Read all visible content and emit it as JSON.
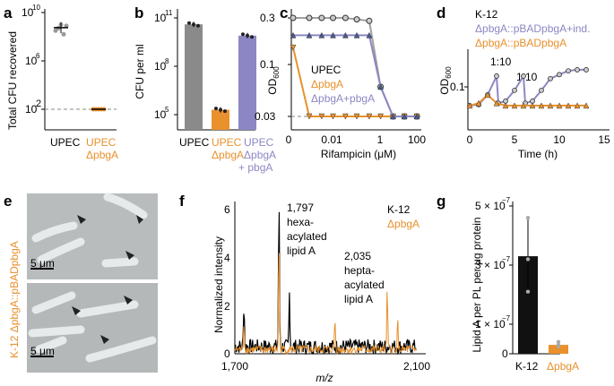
{
  "panels": {
    "a": {
      "label": "a",
      "ylabel": "Total CFU recovered",
      "yticks": [
        "10",
        "10",
        "10"
      ],
      "yexp": [
        "2",
        "6",
        "10"
      ],
      "xcat": [
        "UPEC",
        "UPEC",
        "ΔpbgA"
      ],
      "chart_data": {
        "type": "scatter",
        "yscale": "log",
        "categories": [
          "UPEC",
          "UPEC ΔpbgA"
        ],
        "values_log10": [
          [
            8.5,
            8.7,
            9.0,
            8.2,
            8.9
          ],
          [
            2.0,
            2.0,
            2.0,
            2.0,
            2.0
          ]
        ],
        "mean_log10": [
          8.75,
          2.0
        ],
        "detection_limit_log10": 2.0
      }
    },
    "b": {
      "label": "b",
      "ylabel": "CFU per ml",
      "yticks": [
        "10",
        "10",
        "10"
      ],
      "yexp": [
        "5",
        "8",
        "11"
      ],
      "xcat": [
        "UPEC",
        "UPEC",
        "ΔpbgA",
        "UPEC",
        "ΔpbgA",
        "+ pbgA"
      ],
      "chart_data": {
        "type": "bar",
        "yscale": "log",
        "categories": [
          "UPEC",
          "UPEC ΔpbgA",
          "UPEC ΔpbgA + pbgA"
        ],
        "values_log10": [
          10.6,
          5.3,
          9.9
        ],
        "colors": [
          "#8a8a8a",
          "#e8912d",
          "#8c87c4"
        ]
      }
    },
    "c": {
      "label": "c",
      "ylabel": "OD",
      "ysub": "600",
      "yticks": [
        "0.3",
        "0.1",
        "0.03"
      ],
      "xticks": [
        "0",
        "0.01",
        "1",
        "100"
      ],
      "xlabel": "Rifampicin (μM)",
      "legend": [
        "UPEC",
        "ΔpbgA",
        "ΔpbgA+pbgA"
      ],
      "chart_data": {
        "type": "line",
        "yscale": "log",
        "xscale": "symlog",
        "x": [
          0,
          0.003,
          0.01,
          0.03,
          0.1,
          0.3,
          1,
          3,
          10,
          30,
          100
        ],
        "series": [
          {
            "name": "UPEC",
            "color": "#a0a0a0",
            "values": [
              0.3,
              0.3,
              0.3,
              0.3,
              0.3,
              0.29,
              0.28,
              0.06,
              0.03,
              0.03,
              0.03
            ]
          },
          {
            "name": "ΔpbgA",
            "color": "#e8912d",
            "values": [
              0.15,
              0.03,
              0.03,
              0.03,
              0.03,
              0.03,
              0.03,
              0.03,
              0.03,
              0.03,
              0.03
            ]
          },
          {
            "name": "ΔpbgA+pbgA",
            "color": "#8c87c4",
            "values": [
              0.2,
              0.2,
              0.2,
              0.2,
              0.2,
              0.2,
              0.2,
              0.06,
              0.03,
              0.03,
              0.03
            ]
          }
        ]
      }
    },
    "d": {
      "label": "d",
      "strain": "K-12",
      "ylabel": "OD",
      "ysub": "600",
      "yticks": [
        "0.1"
      ],
      "xticks": [
        "0",
        "5",
        "10",
        "15"
      ],
      "xlabel": "Time (h)",
      "legend1": "ΔpbgA::pBADpbgA+ind.",
      "legend2": "ΔpbgA::pBADpbgA",
      "dil1": "1:10",
      "dil2": "1:10",
      "chart_data": {
        "type": "line",
        "yscale": "log",
        "series": [
          {
            "name": "ΔpbgA::pBADpbgA+ind.",
            "color": "#8c87c4",
            "x": [
              0,
              1,
              2,
              3,
              3.2,
              4,
              5,
              6,
              6.2,
              7,
              8,
              9,
              10,
              11,
              12,
              13
            ],
            "values": [
              0.03,
              0.032,
              0.06,
              0.2,
              0.035,
              0.04,
              0.08,
              0.2,
              0.035,
              0.04,
              0.08,
              0.17,
              0.22,
              0.28,
              0.3,
              0.3
            ]
          },
          {
            "name": "ΔpbgA::pBADpbgA",
            "color": "#e8912d",
            "x": [
              0,
              1,
              2,
              3,
              4,
              5,
              6,
              7,
              8,
              9,
              10,
              11,
              12,
              13
            ],
            "values": [
              0.03,
              0.035,
              0.06,
              0.035,
              0.03,
              0.03,
              0.03,
              0.03,
              0.03,
              0.03,
              0.03,
              0.03,
              0.03,
              0.03
            ]
          }
        ]
      }
    },
    "e": {
      "label": "e",
      "side": "K-12 ΔpbgA::pBADpbgA",
      "scale1": "5 μm",
      "scale2": "5 μm"
    },
    "f": {
      "label": "f",
      "ylabel": "Normalized intensity",
      "xlabel": "m/z",
      "xticks": [
        "1,700",
        "2,100"
      ],
      "yticks": [
        "0",
        "2",
        "4",
        "6"
      ],
      "peak1": "1,797",
      "peak1b": "hexa-",
      "peak1c": "acylated",
      "peak1d": "lipid A",
      "peak2": "2,035",
      "peak2b": "hepta-",
      "peak2c": "acylated",
      "peak2d": "lipid A",
      "leg1": "K-12",
      "leg2": "ΔpbgA",
      "chart_data": {
        "type": "line",
        "xlim": [
          1700,
          2100
        ],
        "ylim": [
          0,
          6
        ],
        "series": [
          {
            "name": "K-12",
            "color": "#000000",
            "peaks": [
              [
                1797,
                6.0
              ],
              [
                1820,
                2.2
              ],
              [
                1720,
                1.8
              ]
            ]
          },
          {
            "name": "ΔpbgA",
            "color": "#e8912d",
            "peaks": [
              [
                1797,
                4.5
              ],
              [
                2035,
                2.5
              ],
              [
                1920,
                1.3
              ],
              [
                2058,
                1.2
              ],
              [
                1720,
                1.2
              ]
            ]
          }
        ]
      }
    },
    "g": {
      "label": "g",
      "ylabel": "Lipid A per PL per μg protein",
      "yticks": [
        "0",
        "1 × 10",
        "3 × 10",
        "5 × 10"
      ],
      "yexp": [
        "−7",
        "−7",
        "−7"
      ],
      "xcat": [
        "K-12",
        "ΔpbgA"
      ],
      "chart_data": {
        "type": "bar",
        "categories": [
          "K-12",
          "ΔpbgA"
        ],
        "values": [
          3.3e-07,
          3e-08
        ],
        "errors": [
          1.3e-07,
          1e-08
        ],
        "points": [
          [
            4.6e-07,
            3.2e-07,
            2.1e-07
          ],
          [
            4e-08,
            3e-08,
            2.5e-08
          ]
        ],
        "colors": [
          "#111111",
          "#e8912d"
        ],
        "ylim": [
          0,
          5e-07
        ]
      }
    }
  }
}
